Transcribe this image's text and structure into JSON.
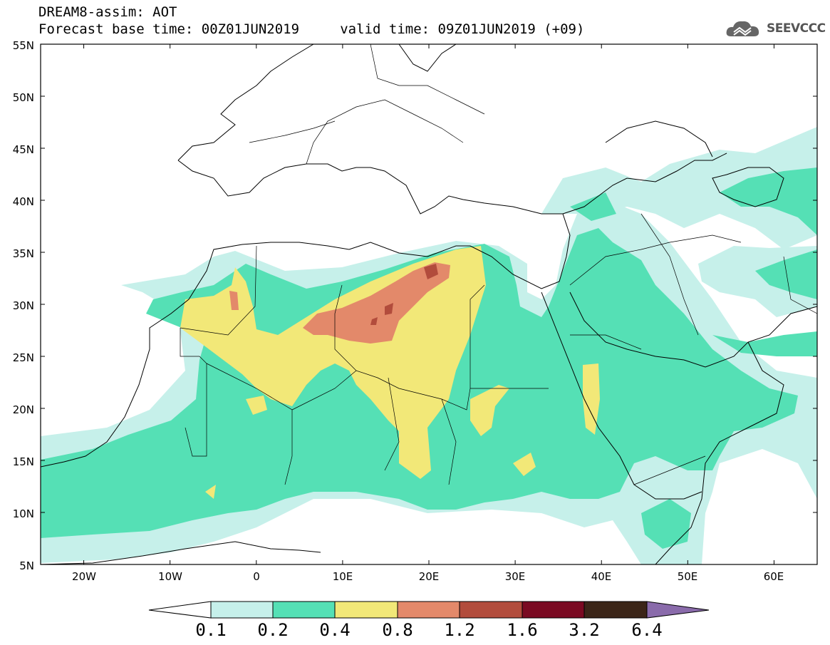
{
  "header": {
    "line1": "DREAM8-assim: AOT",
    "line2": "Forecast base time: 00Z01JUN2019     valid time: 09Z01JUN2019 (+09)",
    "brand": "SEEVCCC",
    "brand_icon": "cloud-logo-icon"
  },
  "axes": {
    "lat_labels": [
      "55N",
      "50N",
      "45N",
      "40N",
      "35N",
      "30N",
      "25N",
      "20N",
      "15N",
      "10N",
      "5N"
    ],
    "lon_labels": [
      "20W",
      "10W",
      "0",
      "10E",
      "20E",
      "30E",
      "40E",
      "50E",
      "60E"
    ],
    "lat_range": [
      5,
      55
    ],
    "lon_range": [
      -25,
      65
    ]
  },
  "colorbar": {
    "labels": [
      "0.1",
      "0.2",
      "0.4",
      "0.8",
      "1.2",
      "1.6",
      "3.2",
      "6.4"
    ],
    "colors": [
      "#ffffff",
      "#c6f0ea",
      "#55e0b5",
      "#f2e878",
      "#e3896a",
      "#b24c3c",
      "#7a0a22",
      "#3b2518",
      "#8a6bab"
    ]
  },
  "colors": {
    "aot_0_1": "#c6f0ea",
    "aot_0_2": "#55e0b5",
    "aot_0_4": "#f2e878",
    "aot_0_8": "#e3896a",
    "aot_1_2": "#b24c3c"
  }
}
